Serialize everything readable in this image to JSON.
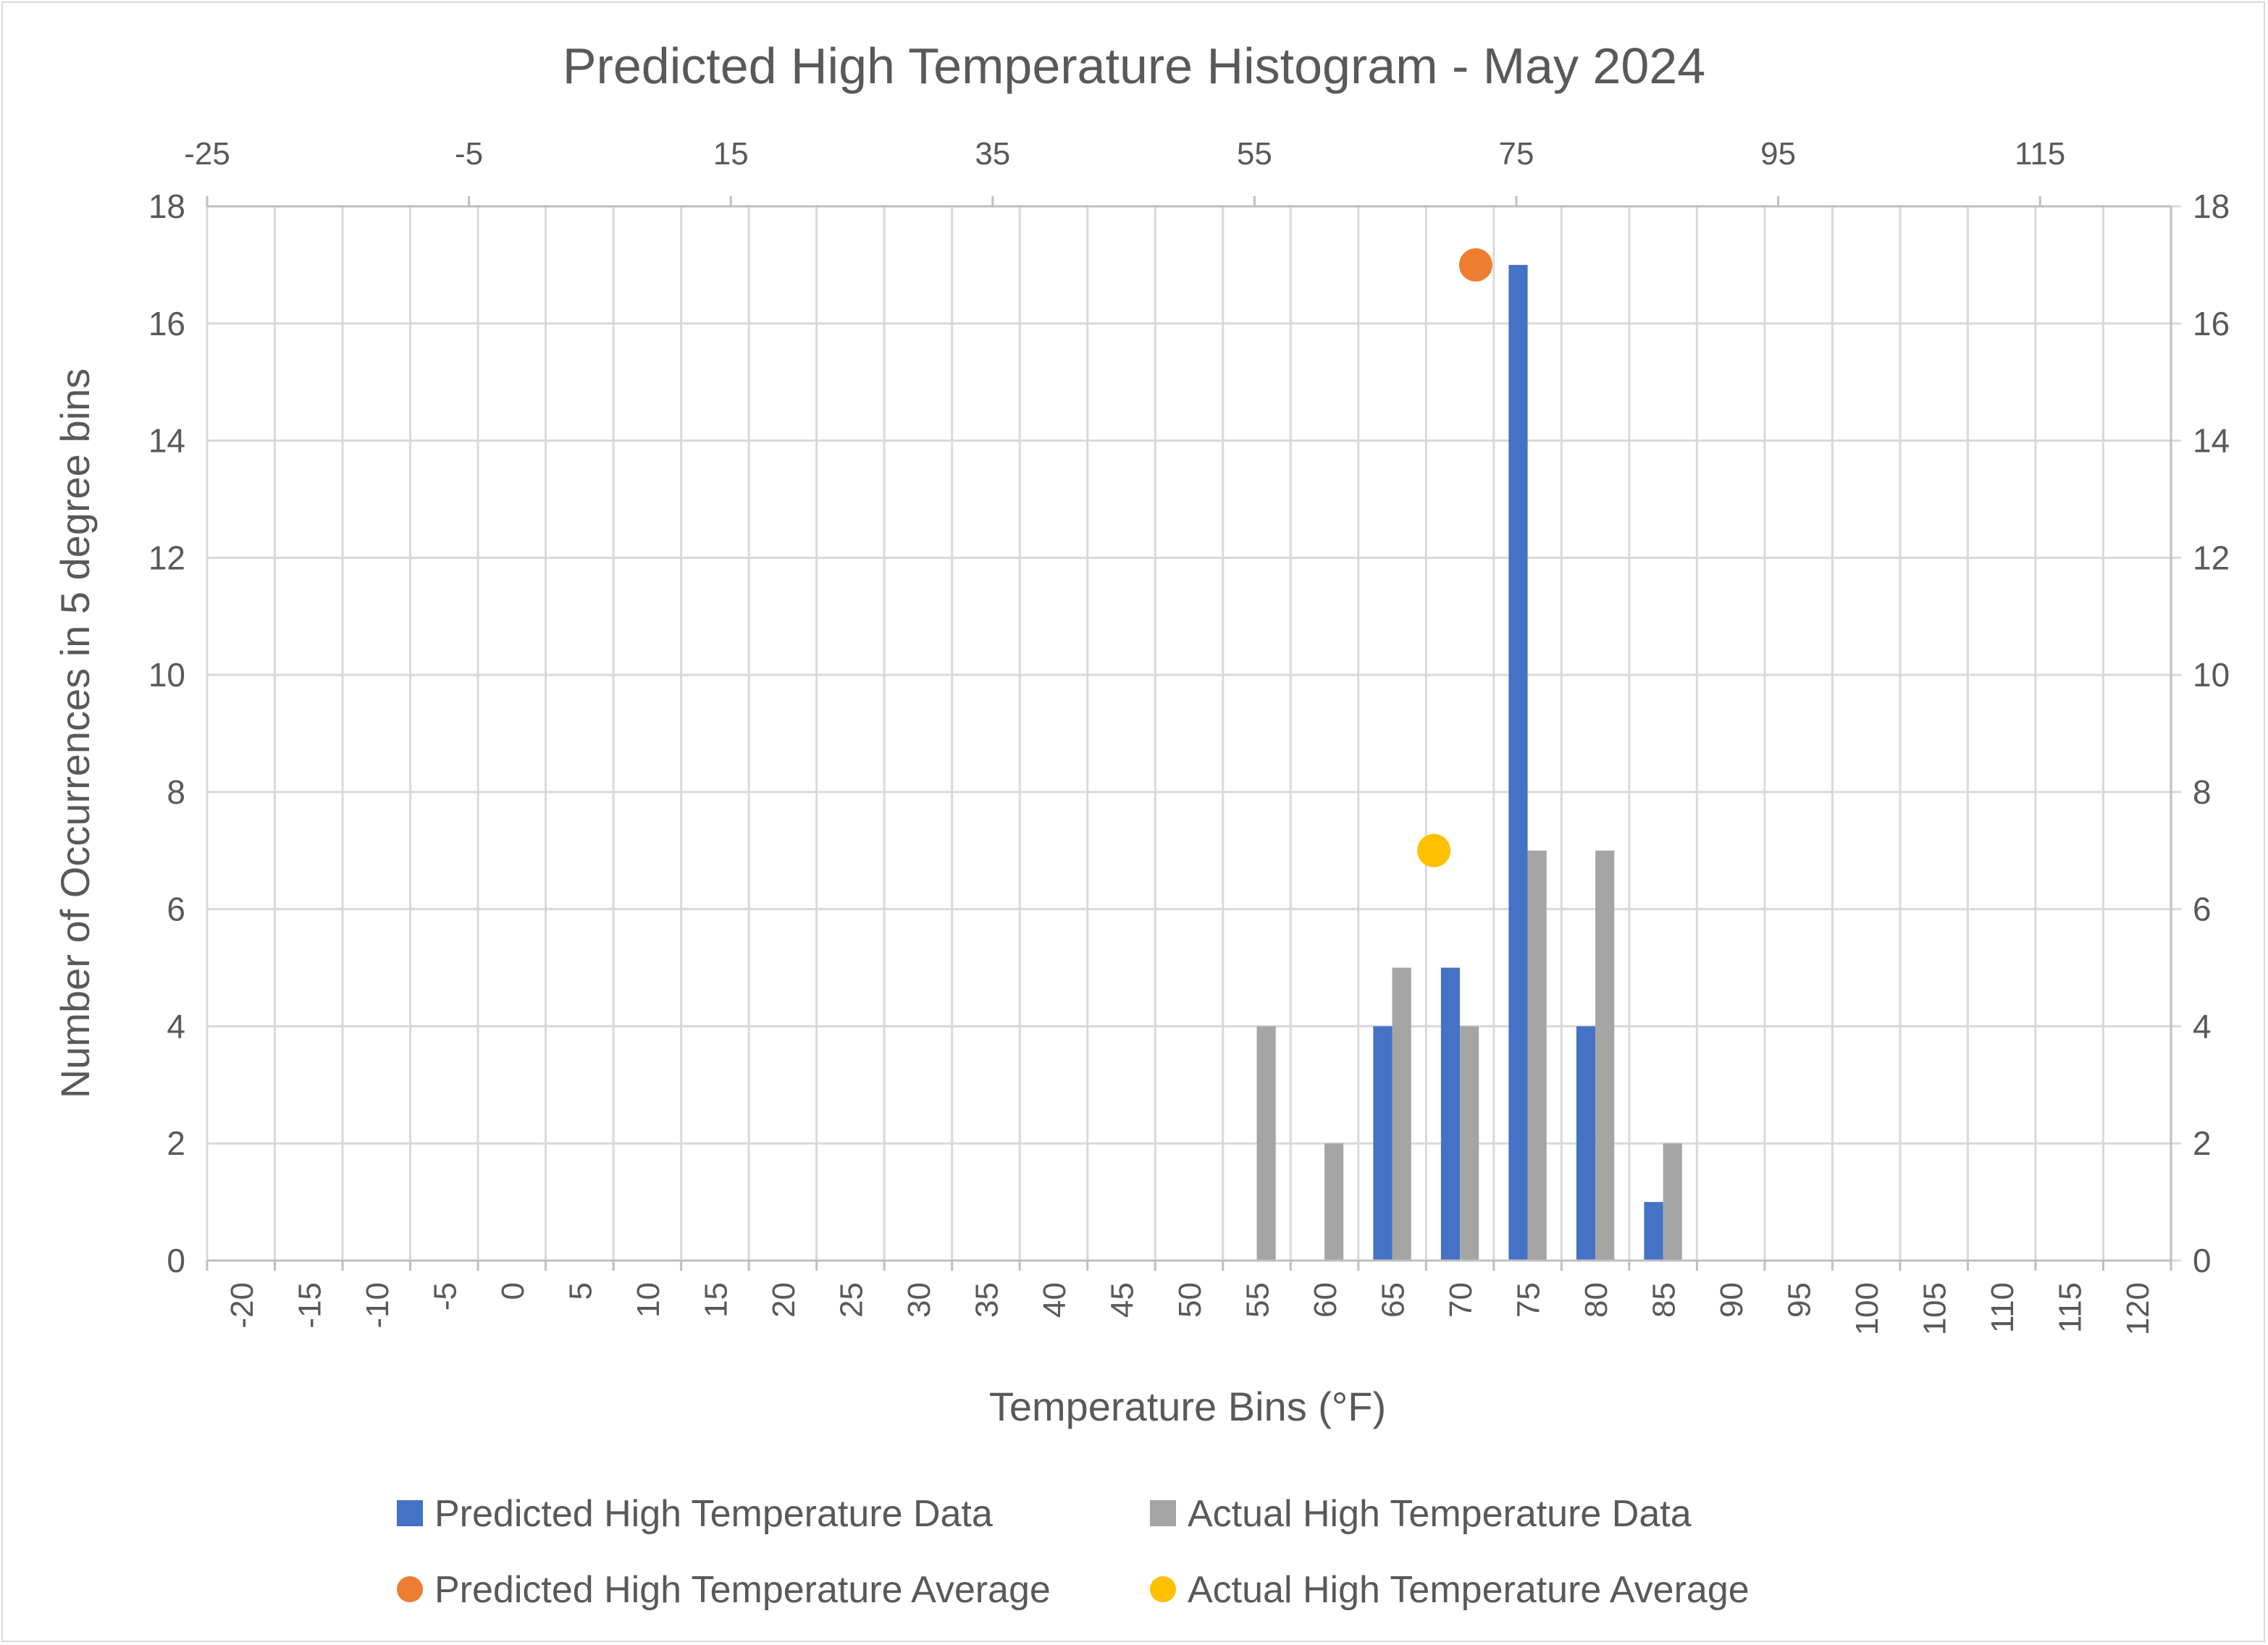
{
  "chart_data": {
    "type": "bar",
    "title": "Predicted High Temperature Histogram - May 2024",
    "xlabel": "Temperature Bins (°F)",
    "ylabel": "Number of Occurrences in 5 degree bins",
    "ylim": [
      0,
      18
    ],
    "yticks": [
      0,
      2,
      4,
      6,
      8,
      10,
      12,
      14,
      16,
      18
    ],
    "categories": [
      "-20",
      "-15",
      "-10",
      "-5",
      "0",
      "5",
      "10",
      "15",
      "20",
      "25",
      "30",
      "35",
      "40",
      "45",
      "50",
      "55",
      "60",
      "65",
      "70",
      "75",
      "80",
      "85",
      "90",
      "95",
      "100",
      "105",
      "110",
      "115",
      "120"
    ],
    "series": [
      {
        "name": "Predicted High Temperature Data",
        "color": "#4472c4",
        "values": [
          0,
          0,
          0,
          0,
          0,
          0,
          0,
          0,
          0,
          0,
          0,
          0,
          0,
          0,
          0,
          0,
          0,
          4,
          5,
          17,
          4,
          1,
          0,
          0,
          0,
          0,
          0,
          0,
          0
        ]
      },
      {
        "name": "Actual High Temperature Data",
        "color": "#a5a5a5",
        "values": [
          0,
          0,
          0,
          0,
          0,
          0,
          0,
          0,
          0,
          0,
          0,
          0,
          0,
          0,
          0,
          4,
          2,
          5,
          4,
          7,
          7,
          2,
          0,
          0,
          0,
          0,
          0,
          0,
          0
        ]
      }
    ],
    "secondary_x": {
      "ticks": [
        -25,
        -5,
        15,
        35,
        55,
        75,
        95,
        115
      ],
      "range": [
        -25,
        125
      ]
    },
    "secondary_y": {
      "ticks": [
        0,
        2,
        4,
        6,
        8,
        10,
        12,
        14,
        16,
        18
      ],
      "range": [
        0,
        18
      ]
    },
    "scatter_series": [
      {
        "name": "Predicted High Temperature Average",
        "color": "#ed7d31",
        "x": 71.9,
        "y": 17
      },
      {
        "name": "Actual High Temperature Average",
        "color": "#ffc000",
        "x": 68.7,
        "y": 7
      }
    ],
    "grid": true,
    "legend_position": "bottom"
  }
}
